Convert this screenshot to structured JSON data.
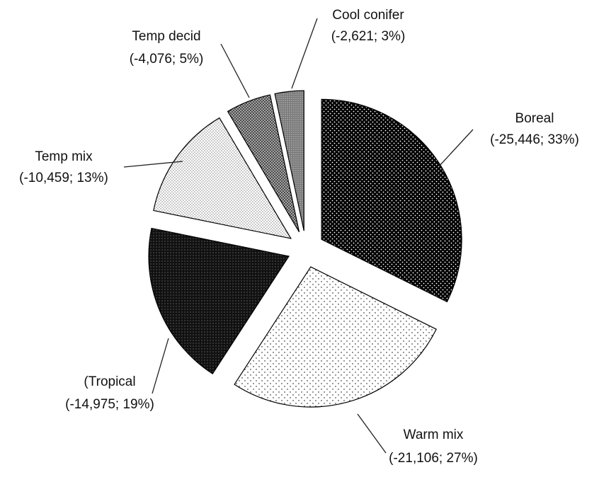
{
  "chart_data": {
    "type": "pie",
    "categories": [
      "Boreal",
      "Warm mix",
      "(Tropical",
      "Temp mix",
      "Temp decid",
      "Cool conifer"
    ],
    "values": [
      -25446,
      -21106,
      -14975,
      -10459,
      -4076,
      -2621
    ],
    "value_labels": [
      "(-25,446; 33%)",
      "(-21,106; 27%)",
      "(-14,975; 19%)",
      "(-10,459; 13%)",
      "(-4,076; 5%)",
      "(-2,621; 3%)"
    ]
  }
}
